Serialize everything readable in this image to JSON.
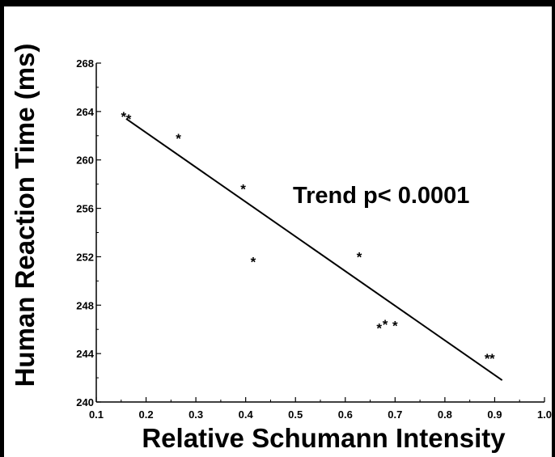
{
  "chart_data": {
    "type": "scatter",
    "xlabel": "Relative Schumann Intensity",
    "ylabel": "Human Reaction Time (ms)",
    "xlim": [
      0.1,
      1.0
    ],
    "ylim": [
      240,
      268
    ],
    "x_ticks": [
      "0.1",
      "0.2",
      "0.3",
      "0.4",
      "0.5",
      "0.6",
      "0.7",
      "0.8",
      "0.9",
      "1.0"
    ],
    "y_ticks": [
      "240",
      "244",
      "248",
      "252",
      "256",
      "260",
      "264",
      "268"
    ],
    "marker": "*",
    "points": [
      {
        "x": 0.155,
        "y": 263.8
      },
      {
        "x": 0.165,
        "y": 263.6
      },
      {
        "x": 0.265,
        "y": 262.0
      },
      {
        "x": 0.395,
        "y": 257.8
      },
      {
        "x": 0.415,
        "y": 251.8
      },
      {
        "x": 0.628,
        "y": 252.2
      },
      {
        "x": 0.668,
        "y": 246.3
      },
      {
        "x": 0.68,
        "y": 246.6
      },
      {
        "x": 0.7,
        "y": 246.5
      },
      {
        "x": 0.885,
        "y": 243.8
      },
      {
        "x": 0.895,
        "y": 243.8
      }
    ],
    "trend_line": {
      "x": [
        0.16,
        0.915
      ],
      "y": [
        263.4,
        241.8
      ]
    },
    "annotation": "Trend p< 0.0001",
    "grid": false
  }
}
